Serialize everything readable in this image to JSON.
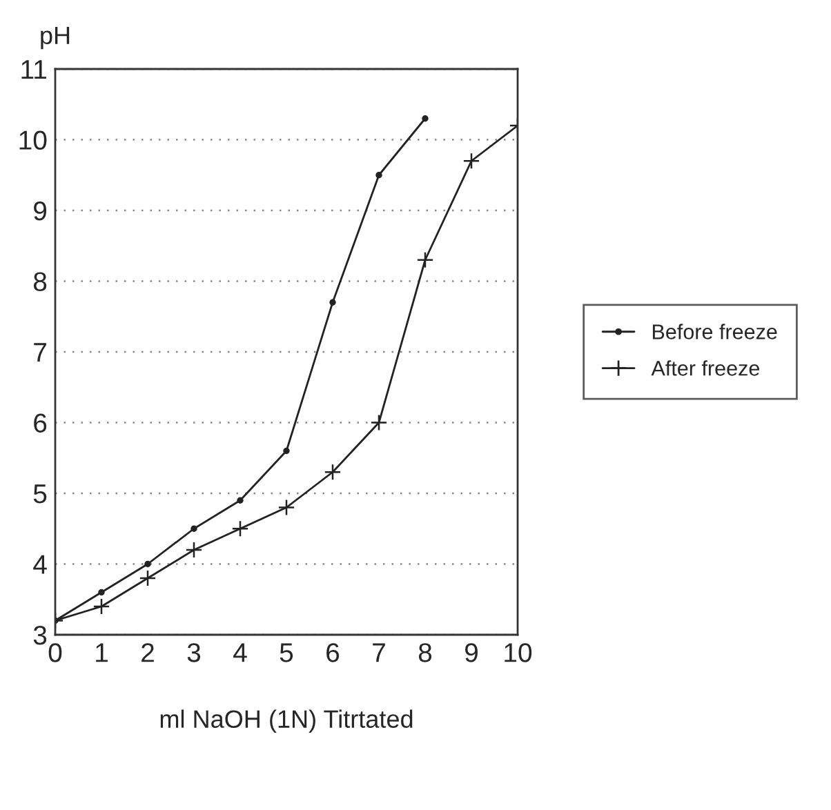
{
  "chart_data": {
    "type": "line",
    "xlabel": "ml NaOH (1N) Titrtated",
    "ylabel": "pH",
    "x": [
      0,
      1,
      2,
      3,
      4,
      5,
      6,
      7,
      8,
      9,
      10
    ],
    "series": [
      {
        "name": "Before freeze",
        "color": "#222222",
        "marker": "circle",
        "values": [
          3.2,
          3.6,
          4.0,
          4.5,
          4.9,
          5.6,
          7.7,
          9.5,
          10.3,
          null,
          null
        ]
      },
      {
        "name": "After freeze",
        "color": "#222222",
        "marker": "cross",
        "values": [
          3.2,
          3.4,
          3.8,
          4.2,
          4.5,
          4.8,
          5.3,
          6.0,
          8.3,
          9.7,
          10.2
        ]
      }
    ],
    "xlim": [
      0,
      10
    ],
    "xticks": [
      0,
      1,
      2,
      3,
      4,
      5,
      6,
      7,
      8,
      9,
      10
    ],
    "ylim": [
      3,
      11
    ],
    "yticks": [
      3,
      4,
      5,
      6,
      7,
      8,
      9,
      10,
      11
    ],
    "grid": "y",
    "legend": "right",
    "line_style": "solid"
  }
}
